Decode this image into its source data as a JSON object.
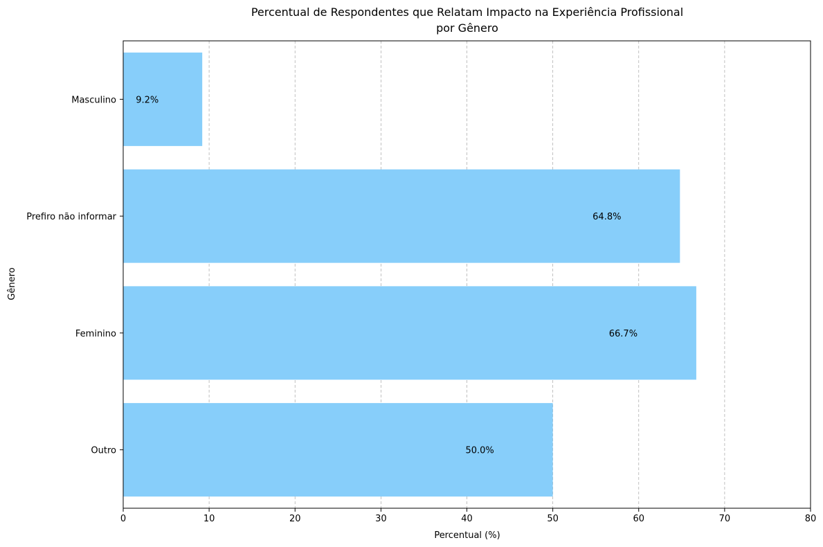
{
  "chart_data": {
    "type": "bar",
    "orientation": "horizontal",
    "title_lines": [
      "Percentual de Respondentes que Relatam Impacto na Experiência Profissional",
      "por Gênero"
    ],
    "xlabel": "Percentual (%)",
    "ylabel": "Gênero",
    "categories": [
      "Outro",
      "Feminino",
      "Prefiro não informar",
      "Masculino"
    ],
    "values": [
      50.0,
      66.7,
      64.8,
      9.2
    ],
    "data_labels": [
      "50.0%",
      "66.7%",
      "64.8%",
      "9.2%"
    ],
    "xlim": [
      0,
      80
    ],
    "xticks": [
      0,
      10,
      20,
      30,
      40,
      50,
      60,
      70,
      80
    ],
    "grid": "x-axis, dashed",
    "bar_color": "#87CEFA"
  }
}
